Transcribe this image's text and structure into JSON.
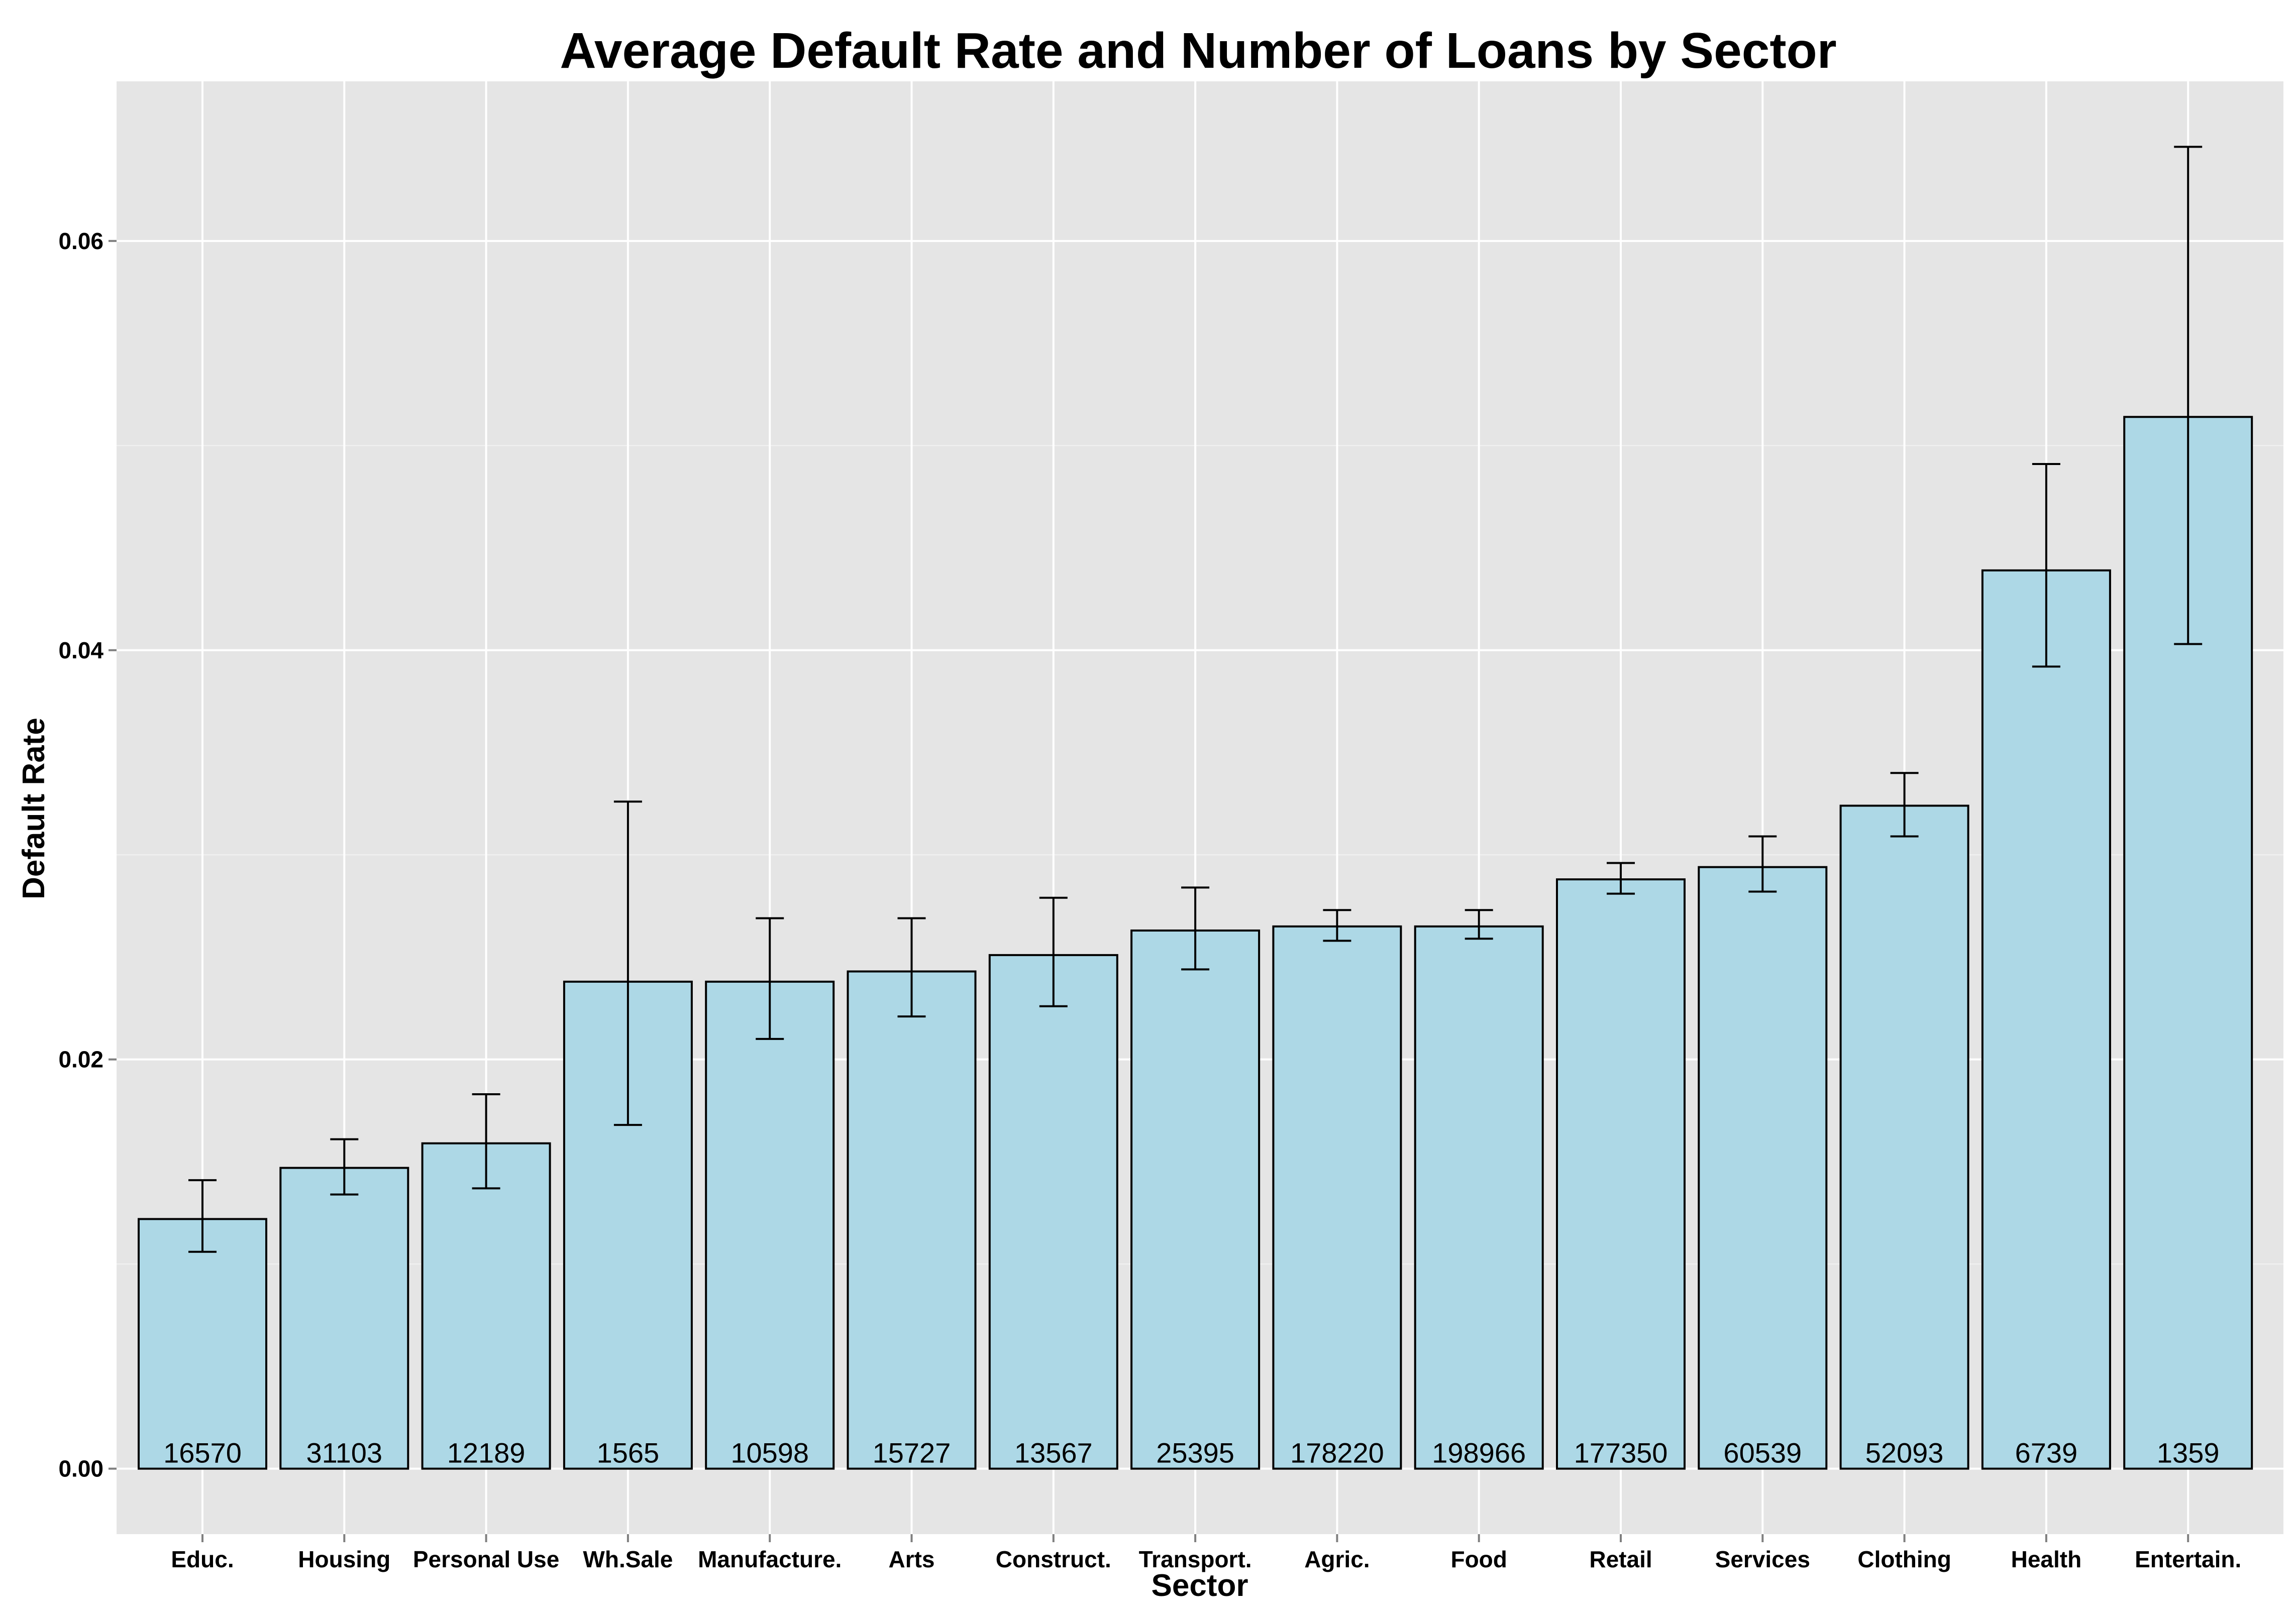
{
  "chart_data": {
    "type": "bar",
    "title": "Average Default Rate and Number of Loans by Sector",
    "xlabel": "Sector",
    "ylabel": "Default Rate",
    "ylim": [
      -0.0032,
      0.0678
    ],
    "yticks": [
      0.0,
      0.02,
      0.04,
      0.06
    ],
    "ytick_labels": [
      "0.00",
      "0.02",
      "0.04",
      "0.06"
    ],
    "grid": true,
    "colors": {
      "panel_background": "#e5e5e5",
      "grid_major": "#ffffff",
      "grid_minor": "#f2f2f2",
      "bar_fill": "#add8e6",
      "bar_outline": "#000000",
      "tick_mark": "#7f7f7f"
    },
    "categories": [
      "Educ.",
      "Housing",
      "Personal Use",
      "Wh.Sale",
      "Manufacture.",
      "Arts",
      "Construct.",
      "Transport.",
      "Agric.",
      "Food",
      "Retail",
      "Services",
      "Clothing",
      "Health",
      "Entertain."
    ],
    "values": [
      0.0122,
      0.0147,
      0.0159,
      0.0238,
      0.0238,
      0.0243,
      0.0251,
      0.0263,
      0.0265,
      0.0265,
      0.0288,
      0.0294,
      0.0324,
      0.0439,
      0.0514
    ],
    "error_low": [
      0.0106,
      0.0134,
      0.0137,
      0.0168,
      0.021,
      0.0221,
      0.0226,
      0.0244,
      0.0258,
      0.0259,
      0.0281,
      0.0282,
      0.0309,
      0.0392,
      0.0403
    ],
    "error_high": [
      0.0141,
      0.0161,
      0.0183,
      0.0326,
      0.0269,
      0.0269,
      0.0279,
      0.0284,
      0.0273,
      0.0273,
      0.0296,
      0.0309,
      0.034,
      0.0491,
      0.0646
    ],
    "counts": [
      "16570",
      "31103",
      "12189",
      "1565",
      "10598",
      "15727",
      "13567",
      "25395",
      "178220",
      "198966",
      "177350",
      "60539",
      "52093",
      "6739",
      "1359"
    ]
  }
}
